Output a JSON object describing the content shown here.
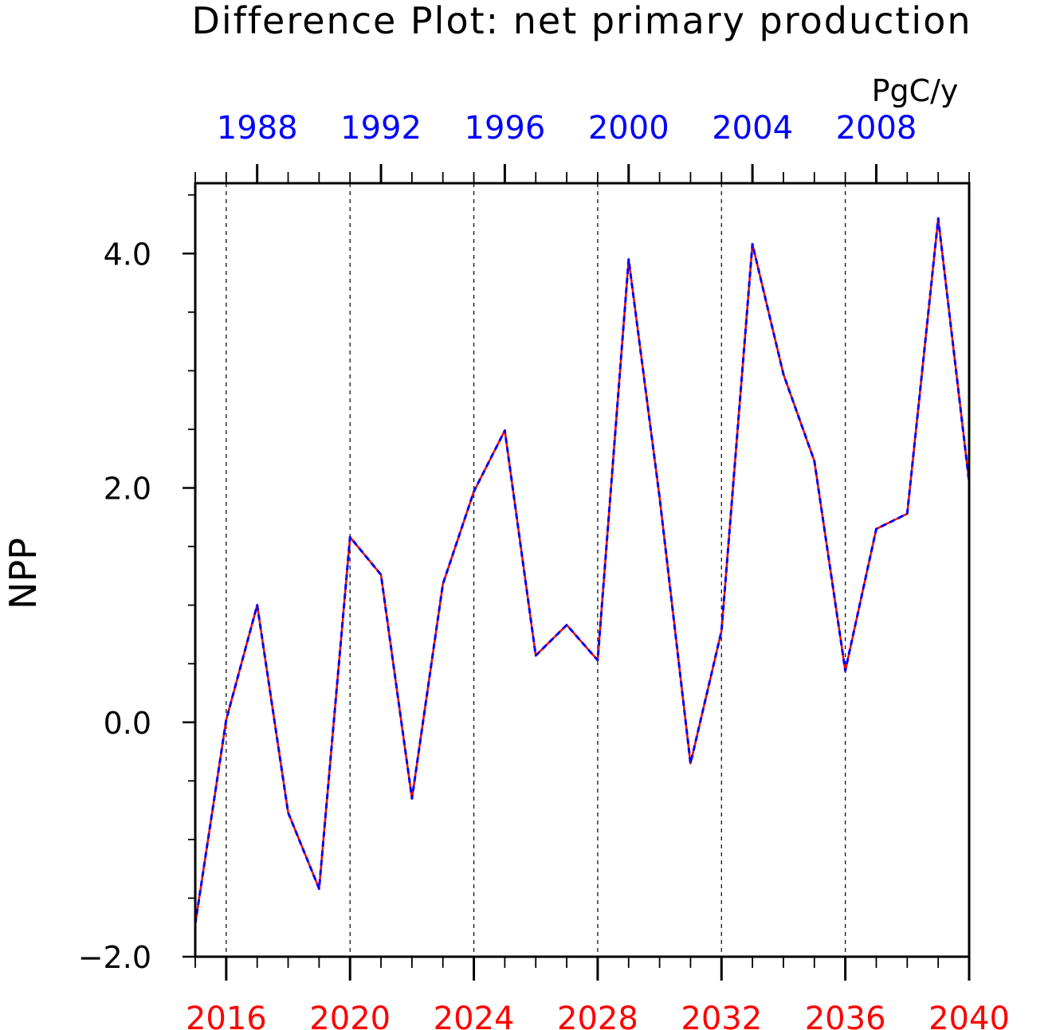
{
  "chart_data": {
    "type": "line",
    "title": "Difference Plot: net primary production",
    "units": "PgC/y",
    "ylabel": "NPP",
    "xlabel": "",
    "ylim": [
      -2.0,
      4.6
    ],
    "xlim": [
      2015,
      2040
    ],
    "y_ticks": [
      {
        "value": -2.0,
        "label": "−2.0"
      },
      {
        "value": 0.0,
        "label": "0.0"
      },
      {
        "value": 2.0,
        "label": "2.0"
      },
      {
        "value": 4.0,
        "label": "4.0"
      }
    ],
    "y_minor_ticks": [
      -1.5,
      -1.0,
      -0.5,
      0.5,
      1.0,
      1.5,
      2.5,
      3.0,
      3.5,
      4.5
    ],
    "x_ticks_bottom": [
      2016,
      2020,
      2024,
      2028,
      2032,
      2036,
      2040
    ],
    "x_ticks_top": [
      {
        "position": 2017,
        "label": "1988"
      },
      {
        "position": 2021,
        "label": "1992"
      },
      {
        "position": 2025,
        "label": "1996"
      },
      {
        "position": 2029,
        "label": "2000"
      },
      {
        "position": 2033,
        "label": "2004"
      },
      {
        "position": 2037,
        "label": "2008"
      }
    ],
    "vertical_gridlines": [
      2016,
      2020,
      2024,
      2028,
      2032,
      2036
    ],
    "x": [
      2015,
      2016,
      2017,
      2018,
      2019,
      2020,
      2021,
      2022,
      2023,
      2024,
      2025,
      2026,
      2027,
      2028,
      2029,
      2030,
      2031,
      2032,
      2033,
      2034,
      2035,
      2036,
      2037,
      2038,
      2039,
      2040
    ],
    "series": [
      {
        "color": "#ff0000",
        "style": "solid",
        "values": [
          -1.72,
          0.02,
          1.0,
          -0.77,
          -1.42,
          1.58,
          1.26,
          -0.65,
          1.18,
          1.97,
          2.49,
          0.57,
          0.83,
          0.53,
          3.95,
          1.92,
          -0.35,
          0.78,
          4.08,
          2.97,
          2.23,
          0.44,
          1.65,
          1.78,
          4.3,
          2.05
        ]
      },
      {
        "color": "#0000ff",
        "style": "dashed",
        "values": [
          -1.72,
          0.02,
          1.0,
          -0.77,
          -1.42,
          1.58,
          1.26,
          -0.65,
          1.18,
          1.97,
          2.49,
          0.57,
          0.83,
          0.53,
          3.95,
          1.92,
          -0.35,
          0.78,
          4.08,
          2.97,
          2.23,
          0.44,
          1.65,
          1.78,
          4.3,
          2.05
        ]
      }
    ],
    "grid": "vertical-dashed",
    "colors": {
      "bottom_axis_labels": "#ff0000",
      "top_axis_labels": "#0000ff"
    }
  }
}
